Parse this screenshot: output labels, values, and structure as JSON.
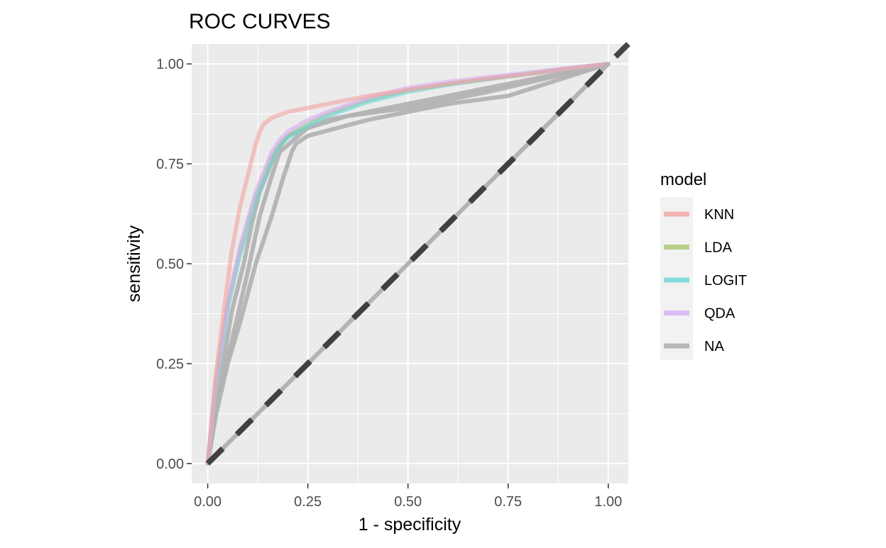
{
  "chart_data": {
    "type": "line",
    "title": "ROC CURVES",
    "xlabel": "1 - specificity",
    "ylabel": "sensitivity",
    "xlim": [
      -0.04,
      1.05
    ],
    "ylim": [
      -0.05,
      1.05
    ],
    "x_ticks": [
      "0.00",
      "0.25",
      "0.50",
      "0.75",
      "1.00"
    ],
    "x_tick_values": [
      0,
      0.25,
      0.5,
      0.75,
      1.0
    ],
    "y_ticks": [
      "0.00",
      "0.25",
      "0.50",
      "0.75",
      "1.00"
    ],
    "y_tick_values": [
      0,
      0.25,
      0.5,
      0.75,
      1.0
    ],
    "grid": true,
    "legend": {
      "title": "model",
      "placement": "right",
      "entries": [
        "KNN",
        "LDA",
        "LOGIT",
        "QDA",
        "NA"
      ]
    },
    "colors": {
      "KNN": "#F4A3A0",
      "LDA": "#A9C66E",
      "LOGIT": "#6CD3D8",
      "QDA": "#D7ABF5",
      "NA": "#B3B3B3",
      "panel": "#EBEBEB",
      "grid": "#FFFFFF",
      "diagonal_dash": "#333333"
    },
    "series": [
      {
        "name": "NA",
        "x": [
          0,
          0.03,
          0.06,
          0.09,
          0.11,
          0.13,
          0.15,
          0.17,
          0.2,
          0.3,
          0.5,
          0.7,
          1.0
        ],
        "y": [
          0,
          0.2,
          0.38,
          0.5,
          0.6,
          0.68,
          0.73,
          0.78,
          0.82,
          0.86,
          0.9,
          0.94,
          1.0
        ]
      },
      {
        "name": "NA",
        "x": [
          0,
          0.02,
          0.05,
          0.08,
          0.12,
          0.16,
          0.19,
          0.21,
          0.22,
          0.25,
          0.4,
          0.6,
          0.75,
          1.0
        ],
        "y": [
          0,
          0.12,
          0.25,
          0.35,
          0.5,
          0.62,
          0.72,
          0.78,
          0.8,
          0.82,
          0.86,
          0.9,
          0.92,
          1.0
        ]
      },
      {
        "name": "NA",
        "x": [
          0,
          0.03,
          0.07,
          0.1,
          0.13,
          0.16,
          0.18,
          0.25,
          0.35,
          0.5,
          0.7,
          1.0
        ],
        "y": [
          0,
          0.18,
          0.35,
          0.48,
          0.62,
          0.72,
          0.78,
          0.84,
          0.87,
          0.89,
          0.93,
          1.0
        ]
      },
      {
        "name": "LDA",
        "x": [
          0,
          0.02,
          0.05,
          0.08,
          0.1,
          0.12,
          0.14,
          0.16,
          0.18,
          0.2,
          0.25,
          0.3,
          0.4,
          0.5,
          0.6,
          0.7,
          0.8,
          0.9,
          1.0
        ],
        "y": [
          0,
          0.2,
          0.4,
          0.53,
          0.6,
          0.67,
          0.72,
          0.77,
          0.8,
          0.82,
          0.85,
          0.875,
          0.91,
          0.935,
          0.95,
          0.963,
          0.975,
          0.988,
          1.0
        ]
      },
      {
        "name": "LOGIT",
        "x": [
          0,
          0.02,
          0.05,
          0.08,
          0.1,
          0.12,
          0.14,
          0.16,
          0.18,
          0.2,
          0.25,
          0.3,
          0.4,
          0.5,
          0.6,
          0.7,
          0.8,
          0.9,
          1.0
        ],
        "y": [
          0,
          0.19,
          0.39,
          0.52,
          0.59,
          0.66,
          0.71,
          0.76,
          0.795,
          0.815,
          0.845,
          0.87,
          0.905,
          0.93,
          0.948,
          0.962,
          0.975,
          0.988,
          1.0
        ]
      },
      {
        "name": "QDA",
        "x": [
          0,
          0.02,
          0.05,
          0.08,
          0.1,
          0.12,
          0.14,
          0.16,
          0.18,
          0.2,
          0.25,
          0.3,
          0.4,
          0.5,
          0.6,
          0.7,
          0.8,
          0.9,
          1.0
        ],
        "y": [
          0,
          0.2,
          0.4,
          0.54,
          0.61,
          0.68,
          0.73,
          0.78,
          0.81,
          0.83,
          0.86,
          0.88,
          0.915,
          0.94,
          0.955,
          0.967,
          0.978,
          0.99,
          1.0
        ]
      },
      {
        "name": "KNN",
        "x": [
          0,
          0.02,
          0.04,
          0.06,
          0.08,
          0.09,
          0.1,
          0.11,
          0.12,
          0.13,
          0.14,
          0.16,
          0.2,
          0.25,
          0.3,
          0.35,
          0.4,
          0.5,
          0.6,
          0.7,
          0.8,
          0.9,
          1.0
        ],
        "y": [
          0,
          0.22,
          0.38,
          0.53,
          0.64,
          0.68,
          0.72,
          0.76,
          0.8,
          0.83,
          0.85,
          0.865,
          0.88,
          0.89,
          0.9,
          0.91,
          0.92,
          0.935,
          0.95,
          0.963,
          0.975,
          0.988,
          1.0
        ]
      }
    ],
    "reference_line": {
      "x": [
        0,
        1.05
      ],
      "y": [
        0,
        1.05
      ]
    }
  }
}
